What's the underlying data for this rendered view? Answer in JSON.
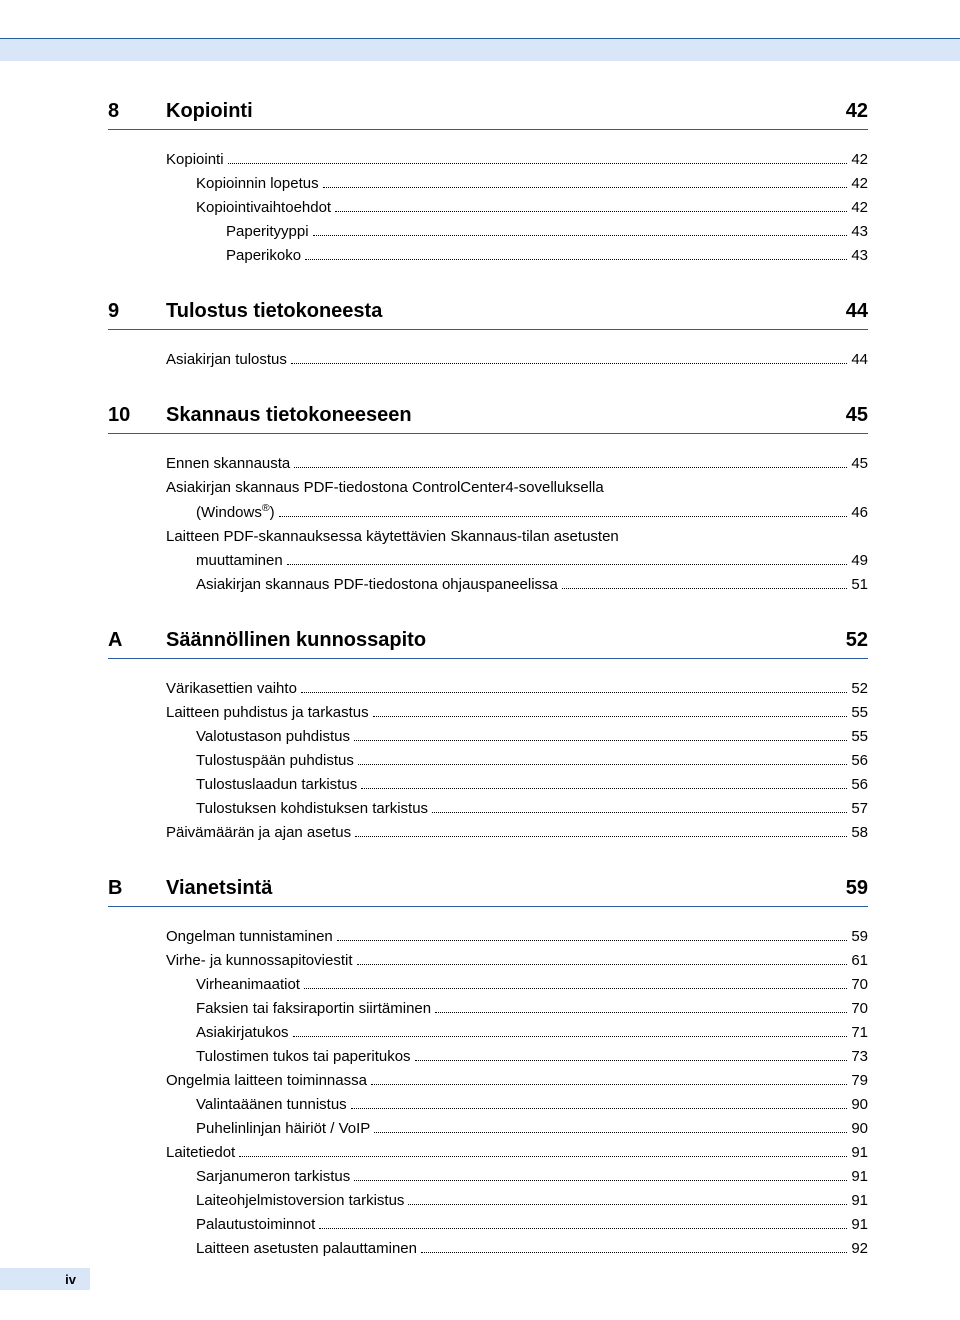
{
  "page_number_label": "iv",
  "colors": {
    "rule": "#2a5fa5",
    "band": "#d9e6f7",
    "text": "#000000",
    "bg": "#ffffff"
  },
  "sections": [
    {
      "num": "8",
      "title": "Kopiointi",
      "page": "42",
      "items": [
        {
          "label": "Kopiointi",
          "page": "42",
          "indent": 0
        },
        {
          "label": "Kopioinnin lopetus",
          "page": "42",
          "indent": 1
        },
        {
          "label": "Kopiointivaihtoehdot",
          "page": "42",
          "indent": 1
        },
        {
          "label": "Paperityyppi",
          "page": "43",
          "indent": 2
        },
        {
          "label": "Paperikoko",
          "page": "43",
          "indent": 2
        }
      ]
    },
    {
      "num": "9",
      "title": "Tulostus tietokoneesta",
      "page": "44",
      "items": [
        {
          "label": "Asiakirjan tulostus",
          "page": "44",
          "indent": 0
        }
      ]
    },
    {
      "num": "10",
      "title": "Skannaus tietokoneeseen",
      "page": "45",
      "items": [
        {
          "label": "Ennen skannausta",
          "page": "45",
          "indent": 0
        },
        {
          "label": "Asiakirjan skannaus PDF-tiedostona ControlCenter4-sovelluksella",
          "wrap": "(Windows®)",
          "page": "46",
          "indent": 0
        },
        {
          "label": "Laitteen PDF-skannauksessa käytettävien Skannaus-tilan asetusten",
          "wrap": "muuttaminen",
          "page": "49",
          "indent": 0
        },
        {
          "label": "Asiakirjan skannaus PDF-tiedostona ohjauspaneelissa",
          "page": "51",
          "indent": 1
        }
      ]
    },
    {
      "num": "A",
      "title": "Säännöllinen kunnossapito",
      "page": "52",
      "items": [
        {
          "label": "Värikasettien vaihto",
          "page": "52",
          "indent": 0
        },
        {
          "label": "Laitteen puhdistus ja tarkastus",
          "page": "55",
          "indent": 0
        },
        {
          "label": "Valotustason puhdistus",
          "page": "55",
          "indent": 1
        },
        {
          "label": "Tulostuspään puhdistus",
          "page": "56",
          "indent": 1
        },
        {
          "label": "Tulostuslaadun tarkistus",
          "page": "56",
          "indent": 1
        },
        {
          "label": "Tulostuksen kohdistuksen tarkistus",
          "page": "57",
          "indent": 1
        },
        {
          "label": "Päivämäärän ja ajan asetus",
          "page": "58",
          "indent": 0
        }
      ]
    },
    {
      "num": "B",
      "title": "Vianetsintä",
      "page": "59",
      "items": [
        {
          "label": "Ongelman tunnistaminen",
          "page": "59",
          "indent": 0
        },
        {
          "label": "Virhe- ja kunnossapitoviestit",
          "page": "61",
          "indent": 0
        },
        {
          "label": "Virheanimaatiot",
          "page": "70",
          "indent": 1
        },
        {
          "label": "Faksien tai faksiraportin siirtäminen",
          "page": "70",
          "indent": 1
        },
        {
          "label": "Asiakirjatukos",
          "page": "71",
          "indent": 1
        },
        {
          "label": "Tulostimen tukos tai paperitukos",
          "page": "73",
          "indent": 1
        },
        {
          "label": "Ongelmia laitteen toiminnassa",
          "page": "79",
          "indent": 0
        },
        {
          "label": "Valintaäänen tunnistus",
          "page": "90",
          "indent": 1
        },
        {
          "label": "Puhelinlinjan häiriöt / VoIP",
          "page": "90",
          "indent": 1
        },
        {
          "label": "Laitetiedot",
          "page": "91",
          "indent": 0
        },
        {
          "label": "Sarjanumeron tarkistus",
          "page": "91",
          "indent": 1
        },
        {
          "label": "Laiteohjelmistoversion tarkistus",
          "page": "91",
          "indent": 1
        },
        {
          "label": "Palautustoiminnot",
          "page": "91",
          "indent": 1
        },
        {
          "label": "Laitteen asetusten palauttaminen",
          "page": "92",
          "indent": 1
        }
      ]
    }
  ]
}
